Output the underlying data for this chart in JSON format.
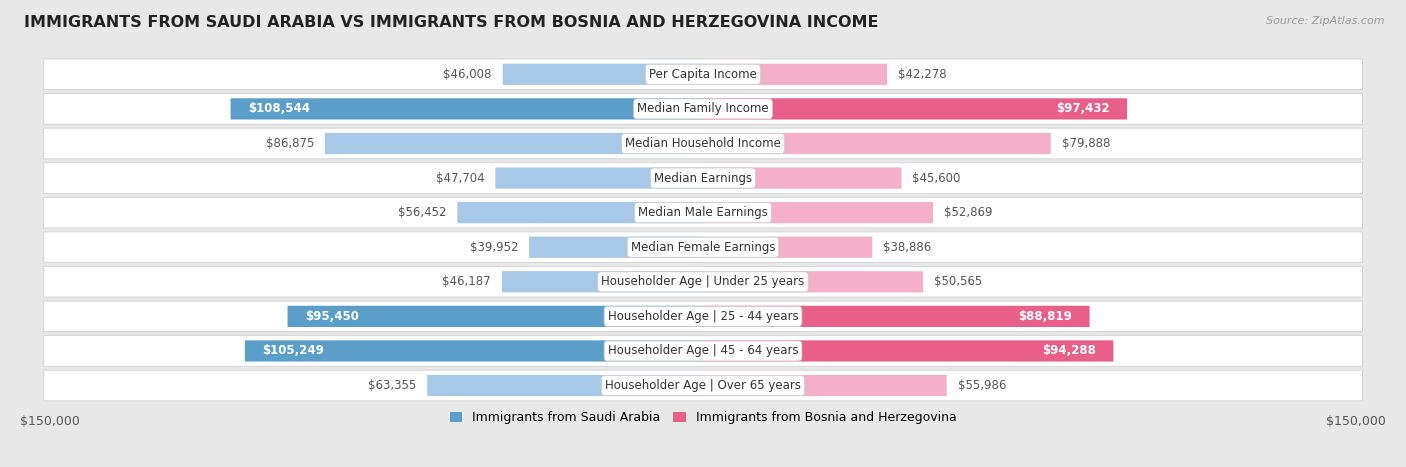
{
  "title": "IMMIGRANTS FROM SAUDI ARABIA VS IMMIGRANTS FROM BOSNIA AND HERZEGOVINA INCOME",
  "source": "Source: ZipAtlas.com",
  "categories": [
    "Per Capita Income",
    "Median Family Income",
    "Median Household Income",
    "Median Earnings",
    "Median Male Earnings",
    "Median Female Earnings",
    "Householder Age | Under 25 years",
    "Householder Age | 25 - 44 years",
    "Householder Age | 45 - 64 years",
    "Householder Age | Over 65 years"
  ],
  "left_values": [
    46008,
    108544,
    86875,
    47704,
    56452,
    39952,
    46187,
    95450,
    105249,
    63355
  ],
  "right_values": [
    42278,
    97432,
    79888,
    45600,
    52869,
    38886,
    50565,
    88819,
    94288,
    55986
  ],
  "left_color_normal": "#A8C8E8",
  "left_color_highlight": "#5B9EC9",
  "right_color_normal": "#F4B0C8",
  "right_color_highlight": "#E8608A",
  "left_label": "Immigrants from Saudi Arabia",
  "right_label": "Immigrants from Bosnia and Herzegovina",
  "max_value": 150000,
  "bg_color": "#e8e8e8",
  "row_bg_color": "#f5f5f5",
  "row_alt_color": "#ebebeb",
  "title_fontsize": 11.5,
  "label_fontsize": 8.5,
  "value_fontsize": 8.5,
  "highlight_rows": [
    1,
    7,
    8
  ],
  "source_fontsize": 8
}
